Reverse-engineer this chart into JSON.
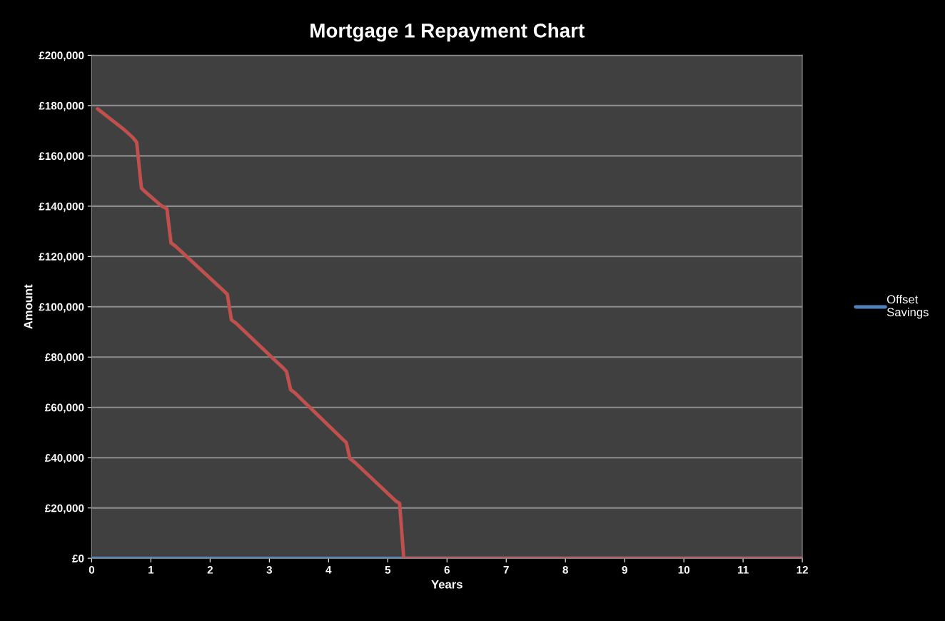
{
  "chart_data": {
    "type": "line",
    "title": "Mortgage 1 Repayment Chart",
    "xlabel": "Years",
    "ylabel": "Amount",
    "xlim": [
      0,
      12
    ],
    "xticks": [
      0,
      1,
      2,
      3,
      4,
      5,
      6,
      7,
      8,
      9,
      10,
      11,
      12
    ],
    "ylim": [
      0,
      200000
    ],
    "yticks": [
      {
        "value": 0,
        "label": "£0"
      },
      {
        "value": 20000,
        "label": "£20,000"
      },
      {
        "value": 40000,
        "label": "£40,000"
      },
      {
        "value": 60000,
        "label": "£60,000"
      },
      {
        "value": 80000,
        "label": "£80,000"
      },
      {
        "value": 100000,
        "label": "£100,000"
      },
      {
        "value": 120000,
        "label": "£120,000"
      },
      {
        "value": 140000,
        "label": "£140,000"
      },
      {
        "value": 160000,
        "label": "£160,000"
      },
      {
        "value": 180000,
        "label": "£180,000"
      },
      {
        "value": 200000,
        "label": "£200,000"
      }
    ],
    "grid": "y",
    "legend": "right",
    "marker": "none",
    "line_style": "solid",
    "series": [
      {
        "name": "Offset Savings",
        "color": "#4f81bd",
        "x": [
          0,
          12
        ],
        "values": [
          0,
          0
        ]
      },
      {
        "color": "#c0504d",
        "x": [
          0.1,
          0.53,
          0.69,
          0.76,
          0.84,
          0.9,
          1.18,
          1.27,
          1.34,
          1.42,
          2.24,
          2.29,
          2.36,
          2.43,
          3.24,
          3.29,
          3.36,
          3.43,
          4.25,
          4.3,
          4.36,
          4.45,
          5.14,
          5.2,
          5.27,
          12
        ],
        "values": [
          178700,
          170800,
          167400,
          165400,
          147200,
          145800,
          140100,
          139000,
          125400,
          124000,
          106100,
          105000,
          94800,
          93600,
          75500,
          74300,
          67000,
          65800,
          47100,
          46000,
          39700,
          38000,
          22700,
          21800,
          0,
          0
        ]
      }
    ]
  }
}
